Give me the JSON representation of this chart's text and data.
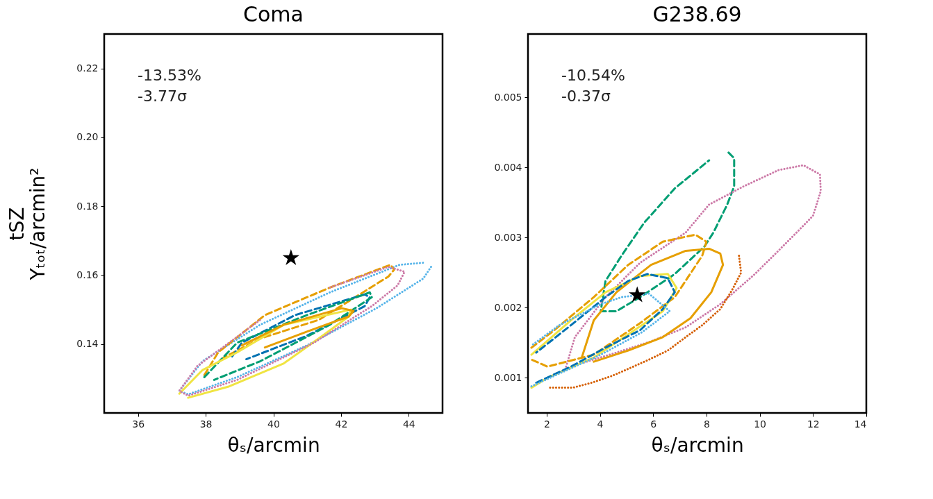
{
  "chart_data": [
    {
      "type": "line",
      "title": "Coma",
      "xlabel": "θₛ/arcmin",
      "ylabel": "tSZ\nYₜₒₜ/arcmin²",
      "xlim": [
        35,
        45
      ],
      "ylim": [
        0.12,
        0.23
      ],
      "xticks": [
        36,
        38,
        40,
        42,
        44
      ],
      "yticks": [
        {
          "value": 0.14,
          "label": "0.14"
        },
        {
          "value": 0.16,
          "label": "0.16"
        },
        {
          "value": 0.18,
          "label": "0.18"
        },
        {
          "value": 0.2,
          "label": "0.20"
        },
        {
          "value": 0.22,
          "label": "0.22"
        }
      ],
      "annotations": [
        "-13.53%\n-3.77σ"
      ],
      "series": [
        {
          "color": "#56b4e9",
          "line_style": "dotted",
          "x": [
            44.66,
            44.43,
            43.05,
            40.99,
            38.93,
            37.48,
            37.22,
            37.9,
            39.61,
            41.67,
            43.73,
            44.43
          ],
          "values": [
            0.1624,
            0.159,
            0.1504,
            0.1396,
            0.1304,
            0.1254,
            0.1264,
            0.135,
            0.1456,
            0.155,
            0.163,
            0.1636
          ]
        },
        {
          "color": "#e69f00",
          "line_style": "dashed",
          "x": [
            37.96,
            38.37,
            39.75,
            41.67,
            43.46,
            43.57,
            43.4,
            41.34,
            39.61,
            38.52
          ],
          "values": [
            0.131,
            0.1376,
            0.1484,
            0.1564,
            0.163,
            0.1616,
            0.1596,
            0.147,
            0.1416,
            0.136
          ]
        },
        {
          "color": "#0072b2",
          "line_style": "dashed",
          "x": [
            38.78,
            39.07,
            40.64,
            42.7,
            42.85,
            42.7,
            40.99,
            39.2
          ],
          "values": [
            0.1364,
            0.1404,
            0.1484,
            0.1544,
            0.1536,
            0.151,
            0.1424,
            0.1356
          ]
        },
        {
          "color": "#009e73",
          "line_style": "dashed",
          "x": [
            37.96,
            38.93,
            40.99,
            42.85,
            42.91,
            41.67,
            39.61,
            38.25
          ],
          "values": [
            0.1304,
            0.1404,
            0.1484,
            0.155,
            0.1536,
            0.1456,
            0.135,
            0.1296
          ]
        },
        {
          "color": "#f0e442",
          "line_style": "solid",
          "x": [
            37.22,
            37.9,
            38.93,
            40.31,
            42.29,
            42.23,
            41.34,
            40.31,
            38.66,
            37.48
          ],
          "values": [
            0.1256,
            0.1324,
            0.1376,
            0.1456,
            0.15,
            0.148,
            0.1416,
            0.1344,
            0.1276,
            0.1244
          ]
        },
        {
          "color": "#e69f00",
          "line_style": "solid",
          "x": [
            39.07,
            40.31,
            42.02,
            42.37,
            42.23,
            40.99,
            39.75
          ],
          "values": [
            0.1396,
            0.1456,
            0.1504,
            0.1496,
            0.148,
            0.1436,
            0.139
          ]
        },
        {
          "color": "#cc79a7",
          "line_style": "dotted",
          "x": [
            41.67,
            43.4,
            43.88,
            43.67,
            42.91,
            41.2,
            38.93,
            37.48,
            37.22,
            37.75,
            39.61
          ],
          "values": [
            0.1564,
            0.1624,
            0.161,
            0.157,
            0.151,
            0.1404,
            0.1296,
            0.125,
            0.1264,
            0.1336,
            0.147
          ]
        },
        {
          "type": "scatter",
          "marker": "star",
          "color": "#000000",
          "x": [
            40.52
          ],
          "values": [
            0.165
          ]
        }
      ]
    },
    {
      "type": "line",
      "title": "G238.69",
      "xlabel": "θₛ/arcmin",
      "xlim": [
        1.3,
        14
      ],
      "ylim": [
        0.0005,
        0.0059
      ],
      "xticks": [
        2,
        4,
        6,
        8,
        10,
        12,
        14
      ],
      "yticks": [
        0.001,
        0.002,
        0.003,
        0.004,
        0.005
      ],
      "annotations": [
        "-10.54%\n-0.37σ"
      ],
      "series": [
        {
          "color": "#009e73",
          "line_style": "dashed",
          "x": [
            8.83,
            9.04,
            9.04,
            8.78,
            8.26,
            7.92,
            6.81,
            5.51,
            4.62,
            4.03,
            4.21,
            4.81,
            5.66,
            6.81,
            8.1
          ],
          "values": [
            0.00421,
            0.00413,
            0.00373,
            0.00347,
            0.00307,
            0.00287,
            0.00248,
            0.00215,
            0.00195,
            0.00195,
            0.00238,
            0.00274,
            0.00321,
            0.0037,
            0.0041
          ]
        },
        {
          "color": "#cc79a7",
          "line_style": "dotted",
          "x": [
            2.73,
            3.06,
            4.21,
            5.51,
            7.22,
            8.1,
            9.4,
            10.7,
            11.64,
            12.26,
            12.29,
            12.0,
            11.12,
            9.82,
            8.52,
            7.22,
            5.92,
            4.62,
            3.32
          ],
          "values": [
            0.00116,
            0.00158,
            0.00215,
            0.00264,
            0.00307,
            0.00347,
            0.00373,
            0.00396,
            0.00403,
            0.0039,
            0.00366,
            0.00331,
            0.00297,
            0.00248,
            0.00205,
            0.00172,
            0.00152,
            0.00136,
            0.00121
          ]
        },
        {
          "color": "#e69f00",
          "line_style": "dashed",
          "x": [
            1.43,
            2.29,
            3.77,
            5.06,
            6.36,
            7.58,
            8.0,
            7.84,
            6.81,
            5.51,
            3.77,
            2.03,
            1.43
          ],
          "values": [
            0.00143,
            0.00168,
            0.00215,
            0.00261,
            0.00294,
            0.00304,
            0.00294,
            0.00274,
            0.00215,
            0.00178,
            0.00133,
            0.00116,
            0.00126
          ]
        },
        {
          "color": "#e69f00",
          "line_style": "solid",
          "x": [
            3.32,
            3.77,
            4.62,
            5.92,
            7.22,
            8.1,
            8.52,
            8.62,
            8.18,
            7.4,
            6.36,
            5.06,
            3.77
          ],
          "values": [
            0.00129,
            0.00182,
            0.00222,
            0.00261,
            0.00281,
            0.00284,
            0.00277,
            0.00261,
            0.00222,
            0.00185,
            0.00158,
            0.00139,
            0.00123
          ]
        },
        {
          "color": "#f0e442",
          "line_style": "solid",
          "x": [
            1.43,
            2.91,
            4.21,
            5.51,
            6.55,
            6.88,
            6.36,
            5.06,
            3.77,
            2.03,
            1.43
          ],
          "values": [
            0.00133,
            0.00182,
            0.00222,
            0.00245,
            0.00248,
            0.00228,
            0.00195,
            0.00162,
            0.00129,
            0.001,
            0.00086
          ]
        },
        {
          "color": "#0072b2",
          "line_style": "dashed",
          "x": [
            1.61,
            2.91,
            4.21,
            5.51,
            6.36,
            6.81,
            6.55,
            5.77,
            5.06,
            4.21,
            2.91,
            1.61
          ],
          "values": [
            0.00093,
            0.00116,
            0.00143,
            0.00168,
            0.00198,
            0.00222,
            0.00242,
            0.00248,
            0.00238,
            0.00215,
            0.00175,
            0.00136
          ]
        },
        {
          "color": "#56b4e9",
          "line_style": "dotted",
          "x": [
            1.43,
            2.47,
            4.03,
            5.58,
            6.62,
            5.84,
            4.81,
            4.03,
            2.47,
            1.43
          ],
          "values": [
            0.00088,
            0.00106,
            0.00133,
            0.00165,
            0.00195,
            0.0022,
            0.00215,
            0.00205,
            0.00175,
            0.00146
          ]
        },
        {
          "color": "#d55e00",
          "line_style": "dotted",
          "x": [
            2.13,
            2.99,
            3.69,
            4.47,
            5.25,
            5.84,
            6.55,
            7.22,
            7.84,
            8.52,
            8.96,
            9.3,
            9.22
          ],
          "values": [
            0.00086,
            0.00086,
            0.00093,
            0.00103,
            0.00116,
            0.00126,
            0.00139,
            0.00158,
            0.00175,
            0.00198,
            0.00225,
            0.0025,
            0.00274
          ]
        },
        {
          "type": "scatter",
          "marker": "star",
          "color": "#000000",
          "x": [
            5.4
          ],
          "values": [
            0.00218
          ]
        }
      ]
    }
  ]
}
